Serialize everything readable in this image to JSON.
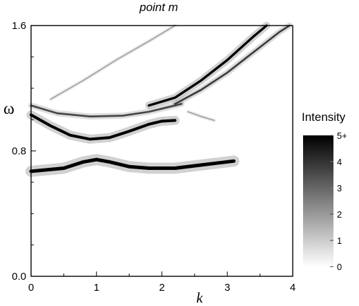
{
  "chart_data": {
    "type": "heatmap",
    "title": "point m",
    "xlabel": "k",
    "ylabel": "ω",
    "xlim": [
      0,
      4
    ],
    "ylim": [
      0.0,
      1.6
    ],
    "x_ticks": [
      0,
      1,
      2,
      3,
      4
    ],
    "x_tick_labels": [
      "0",
      "1",
      "2",
      "3",
      "4"
    ],
    "y_ticks": [
      0.0,
      0.8,
      1.6
    ],
    "y_tick_labels": [
      "0.0",
      "0.8",
      "1.6"
    ],
    "grid": false,
    "colorbar": {
      "title": "Intensity",
      "ticks": [
        0,
        1,
        2,
        3,
        4,
        5
      ],
      "tick_labels": [
        "0",
        "1",
        "2",
        "3",
        "4",
        "5+"
      ],
      "colormap": [
        "#ffffff",
        "#000000"
      ]
    },
    "branches": [
      {
        "name": "",
        "intensity": 5.0,
        "width": 0.022,
        "points": [
          [
            0,
            0.67
          ],
          [
            0.5,
            0.69
          ],
          [
            0.8,
            0.73
          ],
          [
            1.0,
            0.745
          ],
          [
            1.2,
            0.73
          ],
          [
            1.5,
            0.7
          ],
          [
            1.8,
            0.69
          ],
          [
            2.2,
            0.69
          ],
          [
            2.6,
            0.71
          ],
          [
            3.1,
            0.735
          ]
        ]
      },
      {
        "name": "",
        "intensity": 5.0,
        "width": 0.018,
        "points": [
          [
            0,
            1.03
          ],
          [
            0.3,
            0.96
          ],
          [
            0.6,
            0.9
          ],
          [
            0.9,
            0.875
          ],
          [
            1.2,
            0.885
          ],
          [
            1.5,
            0.925
          ],
          [
            1.8,
            0.97
          ],
          [
            2.0,
            0.99
          ],
          [
            2.2,
            0.995
          ]
        ]
      },
      {
        "name": "",
        "intensity": 3.6,
        "width": 0.012,
        "points": [
          [
            0,
            1.09
          ],
          [
            0.4,
            1.04
          ],
          [
            0.9,
            1.02
          ],
          [
            1.4,
            1.025
          ],
          [
            1.8,
            1.05
          ],
          [
            2.1,
            1.08
          ],
          [
            2.3,
            1.1
          ]
        ]
      },
      {
        "name": "",
        "intensity": 5.0,
        "width": 0.015,
        "points": [
          [
            1.8,
            1.09
          ],
          [
            2.2,
            1.14
          ],
          [
            2.6,
            1.25
          ],
          [
            3.0,
            1.38
          ],
          [
            3.4,
            1.53
          ],
          [
            3.6,
            1.6
          ]
        ]
      },
      {
        "name": "",
        "intensity": 3.8,
        "width": 0.012,
        "points": [
          [
            2.2,
            1.1
          ],
          [
            2.6,
            1.19
          ],
          [
            3.0,
            1.3
          ],
          [
            3.4,
            1.43
          ],
          [
            3.8,
            1.56
          ],
          [
            3.95,
            1.6
          ]
        ]
      },
      {
        "name": "",
        "intensity": 1.8,
        "width": 0.008,
        "points": [
          [
            0.3,
            1.13
          ],
          [
            0.8,
            1.25
          ],
          [
            1.3,
            1.38
          ],
          [
            1.8,
            1.5
          ],
          [
            2.2,
            1.6
          ]
        ]
      },
      {
        "name": "",
        "intensity": 1.8,
        "width": 0.008,
        "points": [
          [
            2.4,
            1.05
          ],
          [
            2.6,
            1.02
          ],
          [
            2.8,
            0.995
          ]
        ]
      }
    ]
  }
}
